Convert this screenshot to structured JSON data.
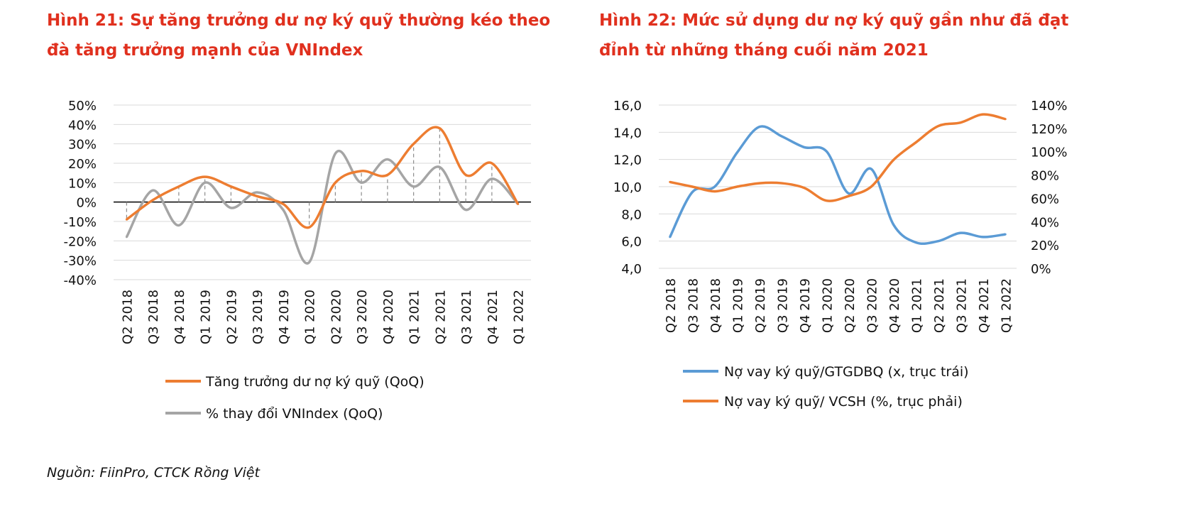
{
  "figure_left": {
    "title_line1": "Hình 21: Sự tăng trưởng dư nợ ký quỹ thường kéo theo",
    "title_line2": "đà tăng trưởng mạnh của VNIndex"
  },
  "figure_right": {
    "title_line1": "Hình 22: Mức sử dụng dư nợ ký quỹ gần như đã đạt",
    "title_line2": "đỉnh từ những tháng cuối năm 2021"
  },
  "source": "Nguồn: FiinPro, CTCK Rồng Việt",
  "chart_data": [
    {
      "type": "line",
      "title": "",
      "categories": [
        "Q2 2018",
        "Q3 2018",
        "Q4 2018",
        "Q1 2019",
        "Q2 2019",
        "Q3 2019",
        "Q4 2019",
        "Q1 2020",
        "Q2 2020",
        "Q3 2020",
        "Q4 2020",
        "Q1 2021",
        "Q2 2021",
        "Q3 2021",
        "Q4 2021",
        "Q1 2022"
      ],
      "y_ticks": [
        "50%",
        "40%",
        "30%",
        "20%",
        "10%",
        "0%",
        "-10%",
        "-20%",
        "-30%",
        "-40%"
      ],
      "ylim": [
        -40,
        50
      ],
      "y_unit": "%",
      "grid": true,
      "dashed_drop_lines": true,
      "legend_position": "bottom",
      "series": [
        {
          "name": "Tăng trưởng dư nợ ký quỹ (QoQ)",
          "color": "#ed7d31",
          "values": [
            -9,
            1,
            8,
            13,
            8,
            3,
            -1,
            -13,
            10,
            16,
            14,
            30,
            38,
            14,
            20,
            -1
          ]
        },
        {
          "name": "% thay đổi VNIndex (QoQ)",
          "color": "#a5a5a5",
          "values": [
            -18,
            6,
            -12,
            10,
            -3,
            5,
            -4,
            -31,
            25,
            10,
            22,
            8,
            18,
            -4,
            12,
            -1
          ]
        }
      ]
    },
    {
      "type": "line",
      "title": "",
      "categories": [
        "Q2 2018",
        "Q3 2018",
        "Q4 2018",
        "Q1 2019",
        "Q2 2019",
        "Q3 2019",
        "Q4 2019",
        "Q1 2020",
        "Q2 2020",
        "Q3 2020",
        "Q4 2020",
        "Q1 2021",
        "Q2 2021",
        "Q3 2021",
        "Q4 2021",
        "Q1 2022"
      ],
      "y_left_ticks": [
        "16,0",
        "14,0",
        "12,0",
        "10,0",
        "8,0",
        "6,0",
        "4,0"
      ],
      "y_right_ticks": [
        "140%",
        "120%",
        "100%",
        "80%",
        "60%",
        "40%",
        "20%",
        "0%"
      ],
      "ylim_left": [
        4,
        16
      ],
      "ylim_right": [
        0,
        140
      ],
      "grid": true,
      "legend_position": "bottom",
      "series": [
        {
          "name": "Nợ vay ký quỹ/GTGDBQ (x, trục trái)",
          "color": "#5b9bd5",
          "axis": "left",
          "values": [
            6.3,
            9.6,
            10.0,
            12.5,
            14.4,
            13.7,
            12.9,
            12.6,
            9.5,
            11.3,
            7.2,
            5.9,
            6.0,
            6.6,
            6.3,
            6.5
          ]
        },
        {
          "name": "Nợ vay ký quỹ/ VCSH (%, trục phải)",
          "color": "#ed7d31",
          "axis": "right",
          "values": [
            74,
            70,
            66,
            70,
            73,
            73,
            69,
            58,
            62,
            70,
            93,
            108,
            122,
            125,
            132,
            128
          ]
        }
      ]
    }
  ]
}
